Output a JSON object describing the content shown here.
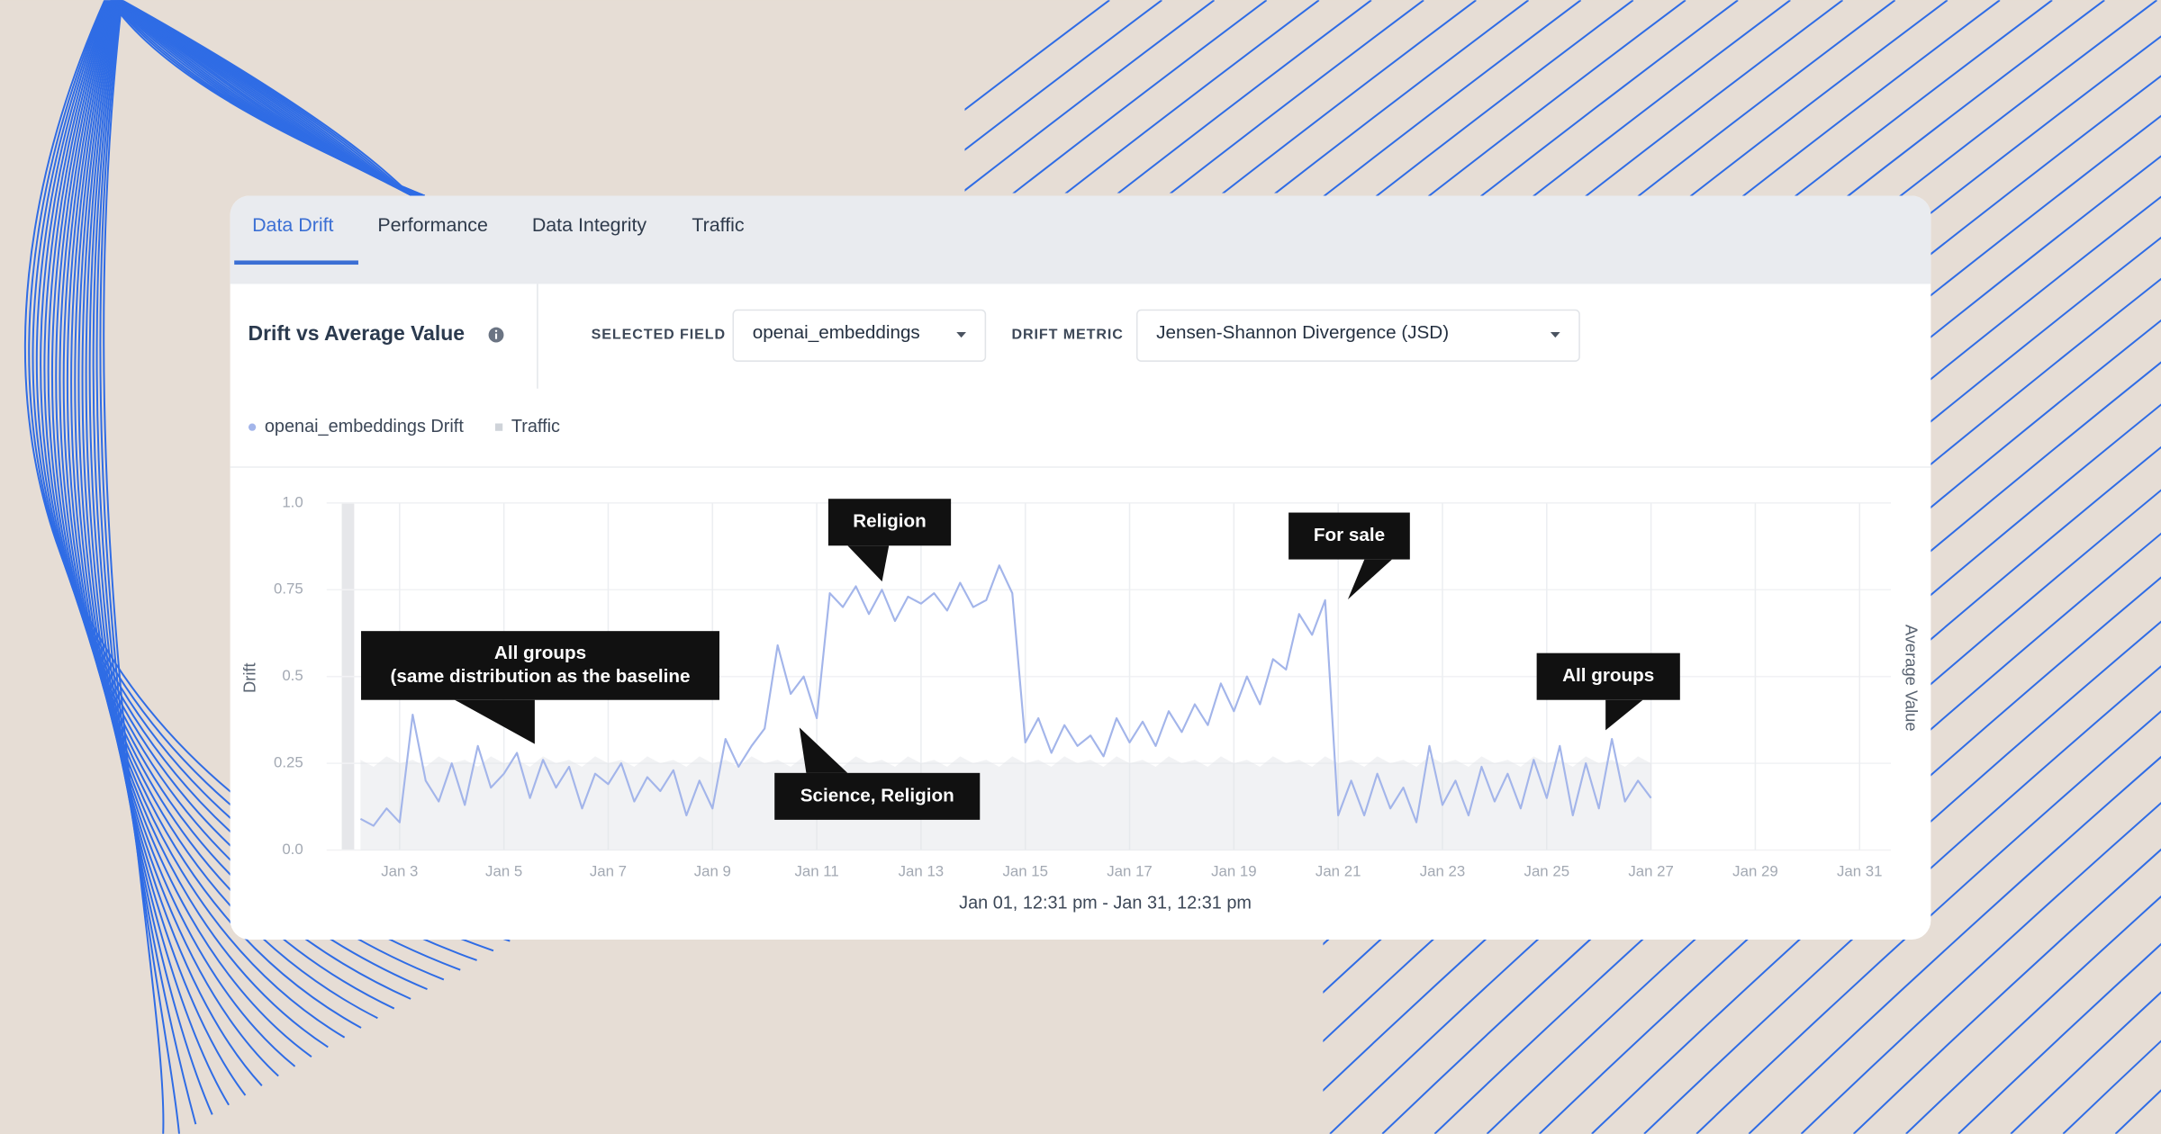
{
  "tabs": [
    "Data Drift",
    "Performance",
    "Data Integrity",
    "Traffic"
  ],
  "controls": {
    "selected_field_label": "SELECTED FIELD",
    "selected_field": "openai_embeddings",
    "drift_metric_label": "DRIFT METRIC",
    "drift_metric": "Jensen-Shannon Divergence (JSD)"
  },
  "chart_data": {
    "type": "line",
    "title": "Drift vs Average Value",
    "x_label": "Jan 01, 12:31 pm - Jan 31, 12:31 pm",
    "y_label": "Drift",
    "y2_label": "Average Value",
    "x": [
      2.25,
      2.5,
      2.75,
      3.0,
      3.25,
      3.5,
      3.75,
      4.0,
      4.25,
      4.5,
      4.75,
      5.0,
      5.25,
      5.5,
      5.75,
      6.0,
      6.25,
      6.5,
      6.75,
      7.0,
      7.25,
      7.5,
      7.75,
      8.0,
      8.25,
      8.5,
      8.75,
      9.0,
      9.25,
      9.5,
      9.75,
      10.0,
      10.25,
      10.5,
      10.75,
      11.0,
      11.25,
      11.5,
      11.75,
      12.0,
      12.25,
      12.5,
      12.75,
      13.0,
      13.25,
      13.5,
      13.75,
      14.0,
      14.25,
      14.5,
      14.75,
      15.0,
      15.25,
      15.5,
      15.75,
      16.0,
      16.25,
      16.5,
      16.75,
      17.0,
      17.25,
      17.5,
      17.75,
      18.0,
      18.25,
      18.5,
      18.75,
      19.0,
      19.25,
      19.5,
      19.75,
      20.0,
      20.25,
      20.5,
      20.75,
      21.0,
      21.25,
      21.5,
      21.75,
      22.0,
      22.25,
      22.5,
      22.75,
      23.0,
      23.25,
      23.5,
      23.75,
      24.0,
      24.25,
      24.5,
      24.75,
      25.0,
      25.25,
      25.5,
      25.75,
      26.0,
      26.25,
      26.5,
      26.75,
      27.0
    ],
    "series": [
      {
        "name": "openai_embeddings Drift",
        "color": "#a3b5ea",
        "values": [
          0.09,
          0.07,
          0.12,
          0.08,
          0.39,
          0.2,
          0.14,
          0.25,
          0.13,
          0.3,
          0.18,
          0.22,
          0.28,
          0.15,
          0.26,
          0.18,
          0.24,
          0.12,
          0.22,
          0.19,
          0.25,
          0.14,
          0.21,
          0.17,
          0.23,
          0.1,
          0.2,
          0.12,
          0.32,
          0.24,
          0.3,
          0.35,
          0.59,
          0.45,
          0.5,
          0.38,
          0.74,
          0.7,
          0.76,
          0.68,
          0.75,
          0.66,
          0.73,
          0.71,
          0.74,
          0.69,
          0.77,
          0.7,
          0.72,
          0.82,
          0.74,
          0.31,
          0.38,
          0.28,
          0.36,
          0.3,
          0.33,
          0.27,
          0.38,
          0.31,
          0.37,
          0.3,
          0.4,
          0.34,
          0.42,
          0.36,
          0.48,
          0.4,
          0.5,
          0.42,
          0.55,
          0.52,
          0.68,
          0.62,
          0.72,
          0.1,
          0.2,
          0.1,
          0.22,
          0.12,
          0.18,
          0.08,
          0.3,
          0.13,
          0.2,
          0.1,
          0.24,
          0.14,
          0.22,
          0.12,
          0.26,
          0.15,
          0.3,
          0.1,
          0.25,
          0.12,
          0.32,
          0.14,
          0.2,
          0.15
        ]
      },
      {
        "name": "Traffic",
        "color": "#dfe2e7",
        "values": [
          0.26,
          0.24,
          0.27,
          0.25,
          0.26,
          0.24,
          0.27,
          0.25,
          0.26,
          0.24,
          0.27,
          0.25,
          0.26,
          0.24,
          0.27,
          0.25,
          0.26,
          0.24,
          0.27,
          0.25,
          0.26,
          0.24,
          0.27,
          0.25,
          0.26,
          0.24,
          0.27,
          0.25,
          0.26,
          0.24,
          0.27,
          0.25,
          0.26,
          0.24,
          0.27,
          0.25,
          0.26,
          0.24,
          0.27,
          0.25,
          0.26,
          0.24,
          0.27,
          0.25,
          0.26,
          0.24,
          0.27,
          0.25,
          0.26,
          0.24,
          0.27,
          0.25,
          0.26,
          0.24,
          0.27,
          0.25,
          0.26,
          0.24,
          0.27,
          0.25,
          0.26,
          0.24,
          0.27,
          0.25,
          0.26,
          0.24,
          0.27,
          0.25,
          0.26,
          0.24,
          0.27,
          0.25,
          0.26,
          0.24,
          0.27,
          0.25,
          0.26,
          0.24,
          0.27,
          0.25,
          0.26,
          0.24,
          0.27,
          0.25,
          0.26,
          0.24,
          0.27,
          0.25,
          0.26,
          0.24,
          0.27,
          0.25,
          0.26,
          0.24,
          0.27,
          0.25,
          0.26,
          0.24,
          0.27,
          0.25
        ]
      }
    ],
    "xlim": [
      1.6,
      31.6
    ],
    "xticks": [
      {
        "value": 3,
        "label": "Jan 3"
      },
      {
        "value": 5,
        "label": "Jan 5"
      },
      {
        "value": 7,
        "label": "Jan 7"
      },
      {
        "value": 9,
        "label": "Jan 9"
      },
      {
        "value": 11,
        "label": "Jan 11"
      },
      {
        "value": 13,
        "label": "Jan 13"
      },
      {
        "value": 15,
        "label": "Jan 15"
      },
      {
        "value": 17,
        "label": "Jan 17"
      },
      {
        "value": 19,
        "label": "Jan 19"
      },
      {
        "value": 21,
        "label": "Jan 21"
      },
      {
        "value": 23,
        "label": "Jan 23"
      },
      {
        "value": 25,
        "label": "Jan 25"
      },
      {
        "value": 27,
        "label": "Jan 27"
      },
      {
        "value": 29,
        "label": "Jan 29"
      },
      {
        "value": 31,
        "label": "Jan 31"
      }
    ],
    "ylim": [
      0,
      1
    ],
    "yticks": [
      {
        "value": 0,
        "label": "0.0"
      },
      0.25,
      0.5,
      0.75,
      {
        "value": 1,
        "label": "1.0"
      }
    ],
    "grid": true,
    "annotations": [
      {
        "lines": [
          "All groups",
          "(same distribution as the baseline"
        ]
      },
      {
        "lines": [
          "Religion"
        ]
      },
      {
        "lines": [
          "Science, Religion"
        ]
      },
      {
        "lines": [
          "For sale"
        ]
      },
      {
        "lines": [
          "All groups"
        ]
      }
    ]
  }
}
